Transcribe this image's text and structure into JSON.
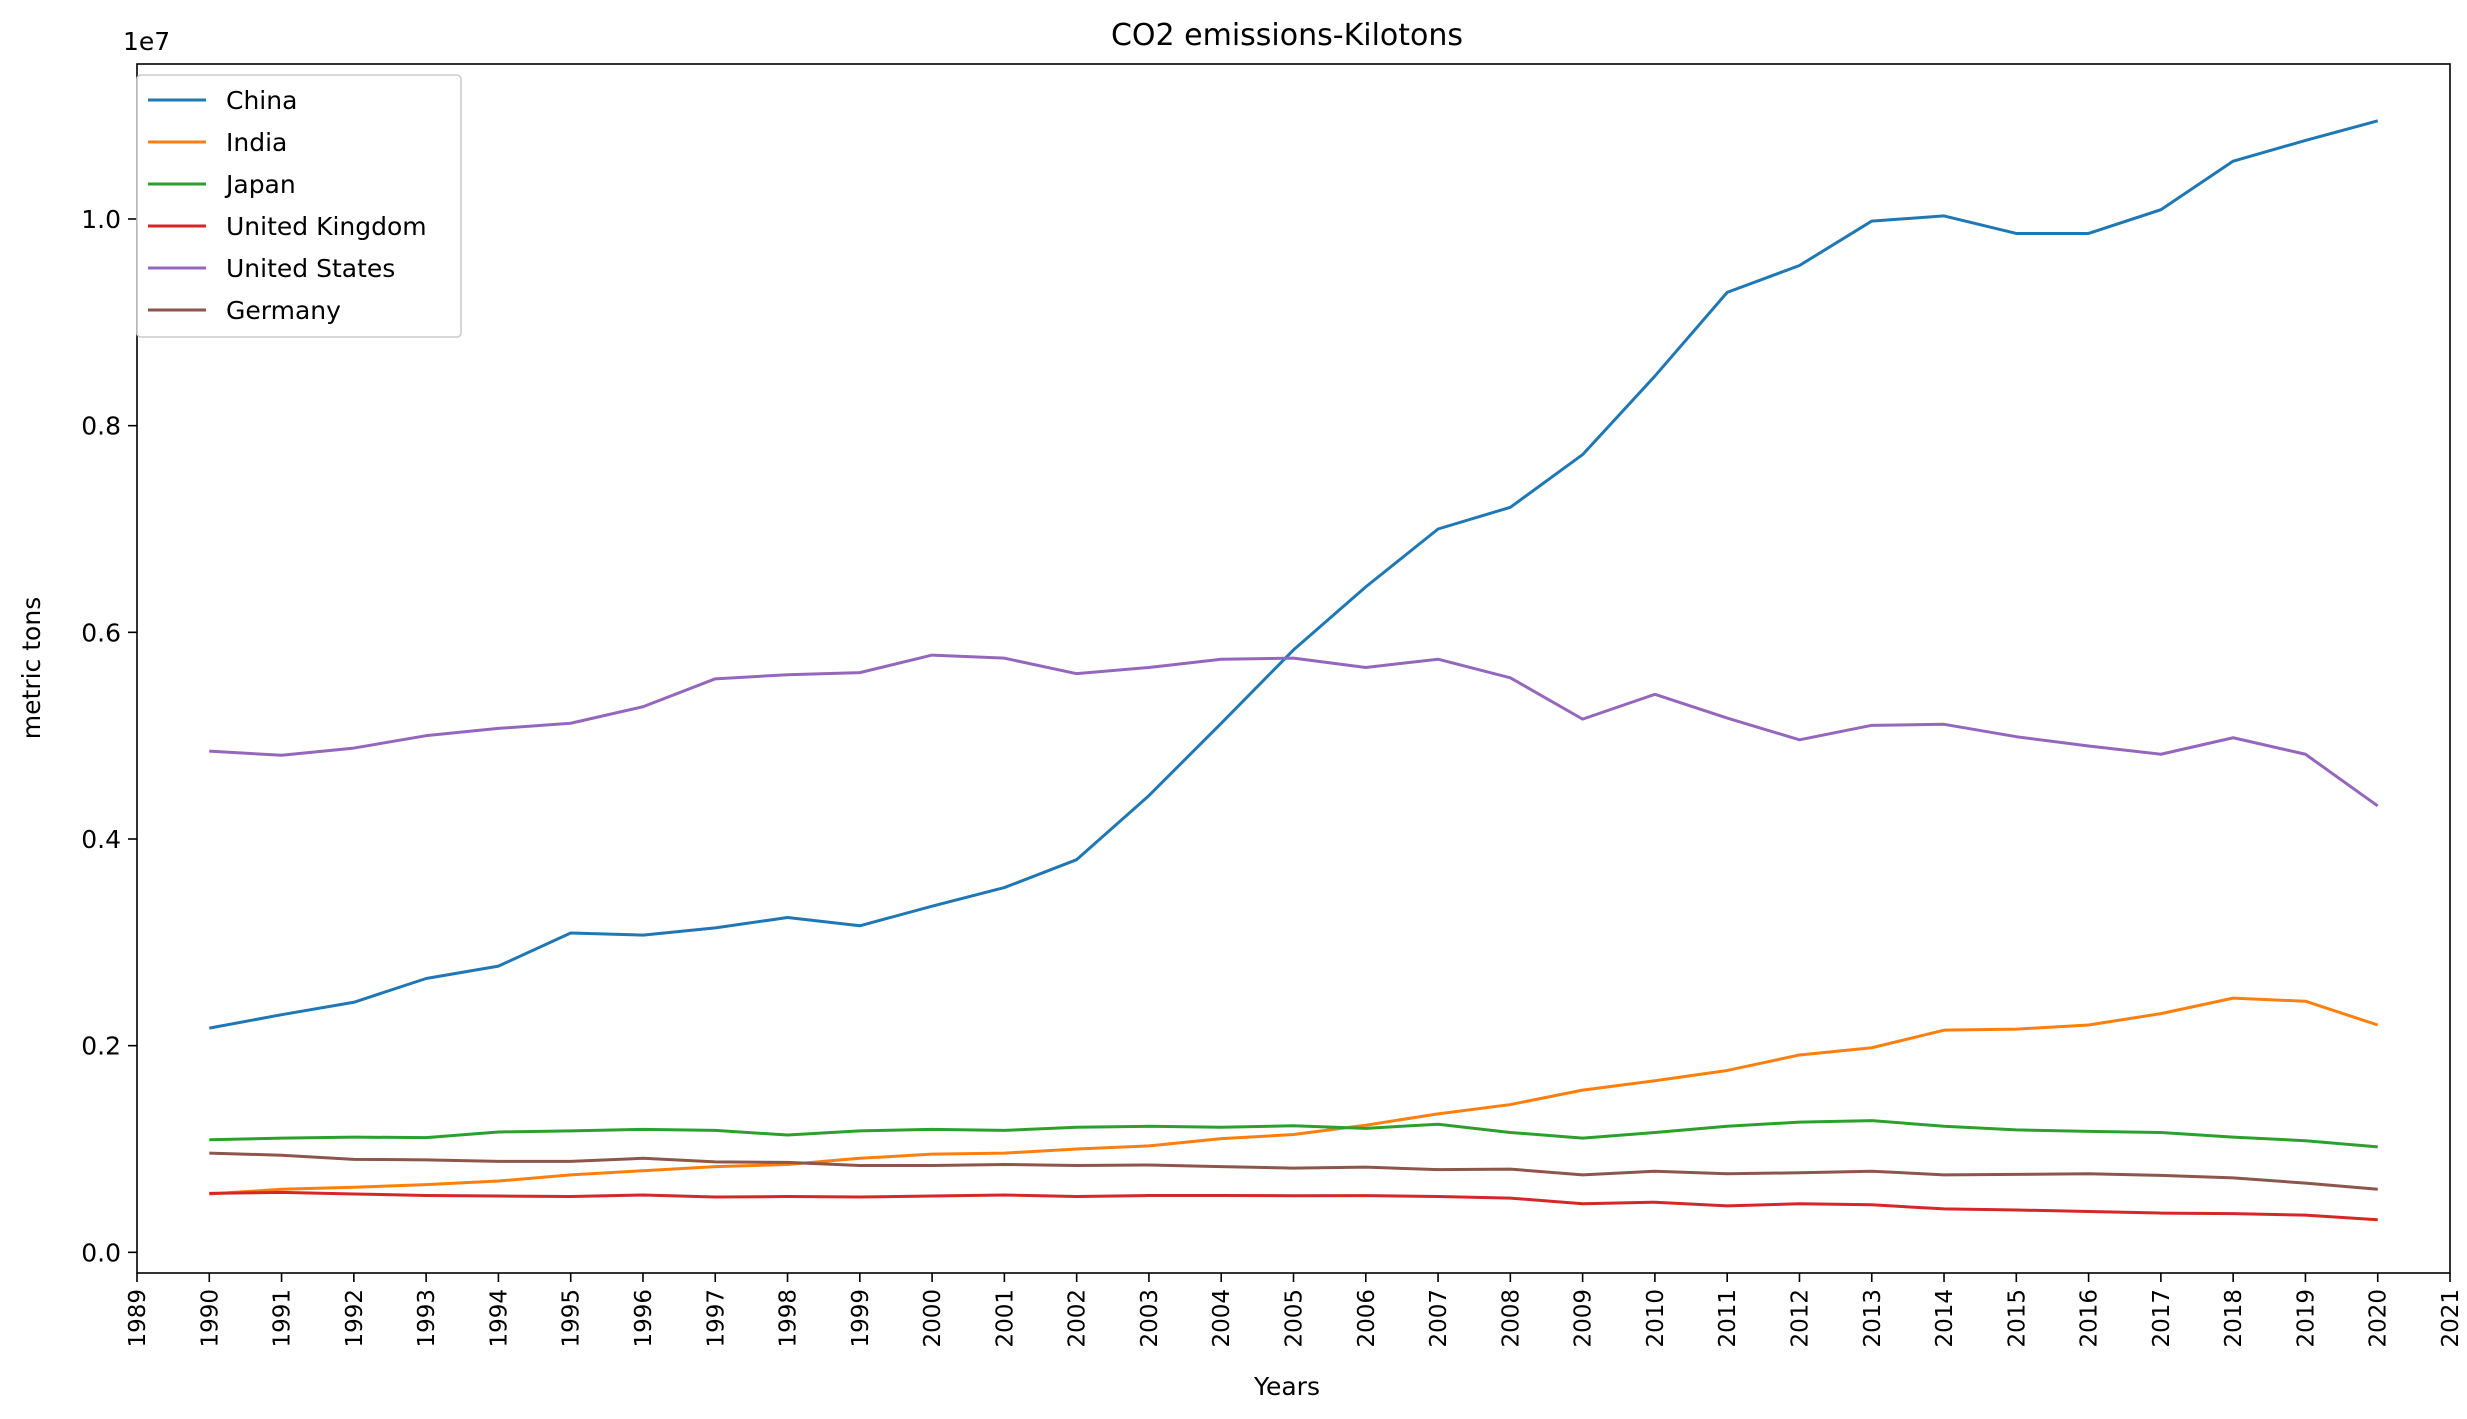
{
  "chart_data": {
    "type": "line",
    "title": "CO2 emissions-Kilotons",
    "xlabel": "Years",
    "ylabel": "metric tons",
    "y_offset_label": "1e7",
    "xlim": [
      1989,
      2021
    ],
    "ylim": [
      -200000,
      11500000
    ],
    "x_ticks": [
      "1989",
      "1990",
      "1991",
      "1992",
      "1993",
      "1994",
      "1995",
      "1996",
      "1997",
      "1998",
      "1999",
      "2000",
      "2001",
      "2002",
      "2003",
      "2004",
      "2005",
      "2006",
      "2007",
      "2008",
      "2009",
      "2010",
      "2011",
      "2012",
      "2013",
      "2014",
      "2015",
      "2016",
      "2017",
      "2018",
      "2019",
      "2020",
      "2021"
    ],
    "y_ticks": [
      {
        "value": 0,
        "label": "0.0"
      },
      {
        "value": 2000000,
        "label": "0.2"
      },
      {
        "value": 4000000,
        "label": "0.4"
      },
      {
        "value": 6000000,
        "label": "0.6"
      },
      {
        "value": 8000000,
        "label": "0.8"
      },
      {
        "value": 10000000,
        "label": "1.0"
      }
    ],
    "grid": false,
    "legend_position": "top-left",
    "x": [
      1990,
      1991,
      1992,
      1993,
      1994,
      1995,
      1996,
      1997,
      1998,
      1999,
      2000,
      2001,
      2002,
      2003,
      2004,
      2005,
      2006,
      2007,
      2008,
      2009,
      2010,
      2011,
      2012,
      2013,
      2014,
      2015,
      2016,
      2017,
      2018,
      2019,
      2020
    ],
    "series": [
      {
        "name": "China",
        "color": "#1f77b4",
        "values": [
          2170000,
          2300000,
          2420000,
          2650000,
          2770000,
          3090000,
          3070000,
          3140000,
          3240000,
          3160000,
          3350000,
          3530000,
          3800000,
          4420000,
          5120000,
          5830000,
          6440000,
          7000000,
          7210000,
          7720000,
          8480000,
          9290000,
          9550000,
          9980000,
          10030000,
          9860000,
          9860000,
          10090000,
          10560000,
          10760000,
          10950000
        ]
      },
      {
        "name": "India",
        "color": "#ff7f0e",
        "values": [
          565000,
          610000,
          630000,
          655000,
          690000,
          750000,
          790000,
          830000,
          850000,
          910000,
          950000,
          960000,
          1000000,
          1030000,
          1100000,
          1140000,
          1230000,
          1340000,
          1430000,
          1570000,
          1660000,
          1760000,
          1910000,
          1980000,
          2150000,
          2160000,
          2200000,
          2310000,
          2460000,
          2430000,
          2200000
        ]
      },
      {
        "name": "Japan",
        "color": "#2ca02c",
        "values": [
          1090000,
          1105000,
          1115000,
          1110000,
          1165000,
          1175000,
          1190000,
          1180000,
          1135000,
          1175000,
          1190000,
          1180000,
          1210000,
          1220000,
          1210000,
          1225000,
          1200000,
          1240000,
          1160000,
          1105000,
          1160000,
          1220000,
          1260000,
          1275000,
          1220000,
          1185000,
          1170000,
          1160000,
          1115000,
          1080000,
          1020000
        ]
      },
      {
        "name": "United Kingdom",
        "color": "#d62728",
        "values": [
          570000,
          580000,
          565000,
          550000,
          545000,
          540000,
          555000,
          535000,
          540000,
          535000,
          545000,
          555000,
          540000,
          550000,
          550000,
          548000,
          549000,
          540000,
          525000,
          470000,
          485000,
          450000,
          470000,
          460000,
          420000,
          410000,
          395000,
          380000,
          375000,
          360000,
          315000
        ]
      },
      {
        "name": "United States",
        "color": "#9467bd",
        "values": [
          4850000,
          4810000,
          4880000,
          5000000,
          5070000,
          5120000,
          5280000,
          5550000,
          5590000,
          5610000,
          5780000,
          5750000,
          5600000,
          5660000,
          5740000,
          5750000,
          5660000,
          5740000,
          5560000,
          5160000,
          5400000,
          5170000,
          4960000,
          5100000,
          5110000,
          4990000,
          4900000,
          4820000,
          4980000,
          4820000,
          4320000
        ]
      },
      {
        "name": "Germany",
        "color": "#8c564b",
        "values": [
          960000,
          940000,
          900000,
          895000,
          880000,
          880000,
          910000,
          875000,
          870000,
          840000,
          840000,
          850000,
          840000,
          845000,
          830000,
          815000,
          825000,
          800000,
          805000,
          750000,
          785000,
          760000,
          770000,
          785000,
          750000,
          755000,
          760000,
          745000,
          720000,
          670000,
          610000
        ]
      }
    ]
  }
}
